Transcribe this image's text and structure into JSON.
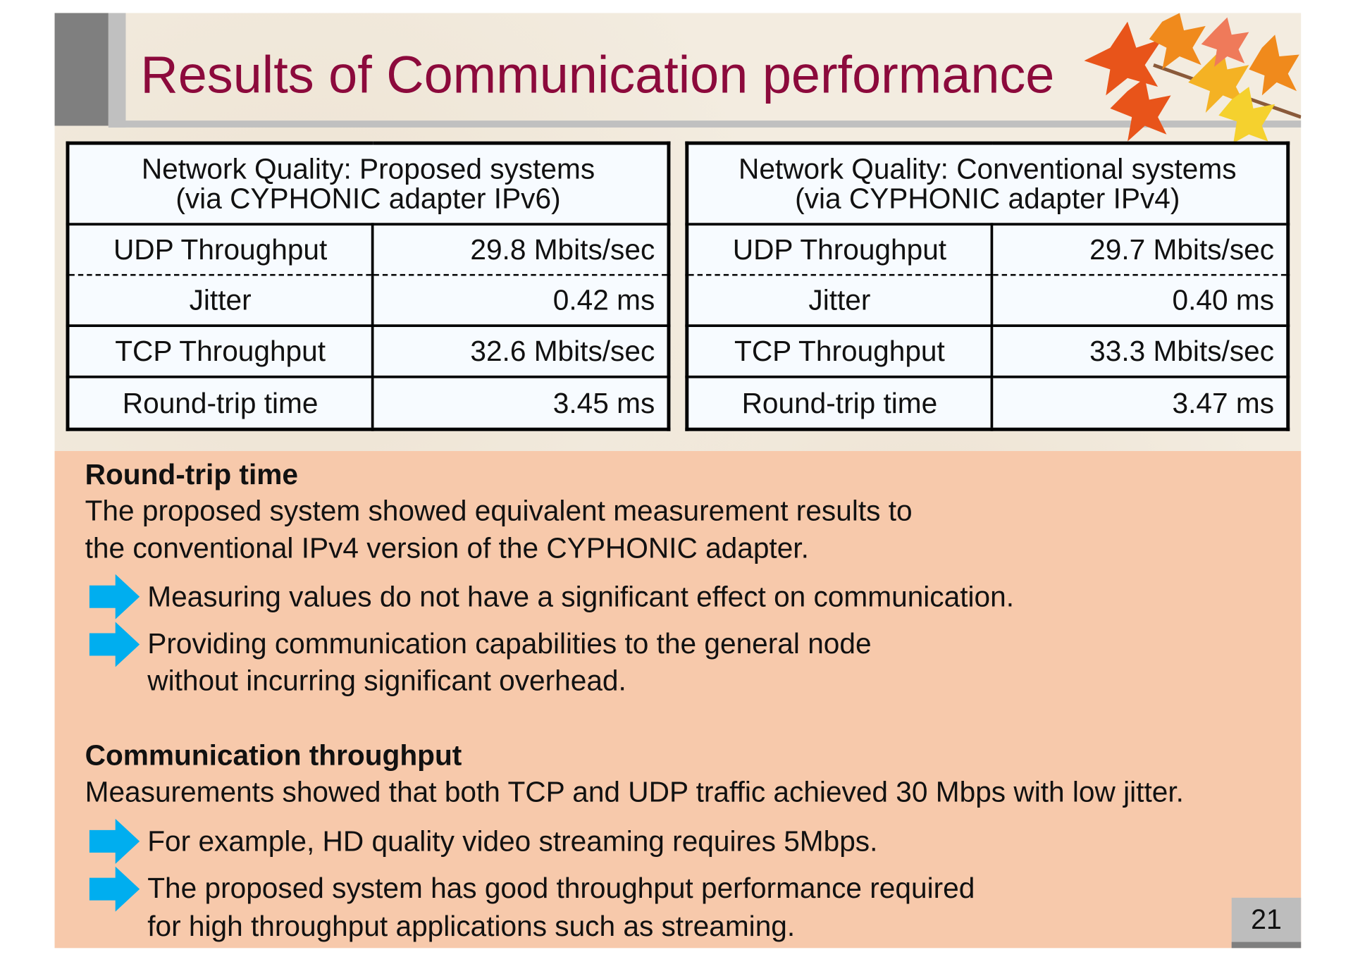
{
  "title": "Results of Communication performance",
  "tables": [
    {
      "header_line1": "Network Quality: Proposed systems",
      "header_line2": "(via CYPHONIC adapter IPv6)",
      "rows": [
        {
          "label": "UDP Throughput",
          "value": "29.8 Mbits/sec"
        },
        {
          "label": "Jitter",
          "value": "0.42 ms"
        },
        {
          "label": "TCP Throughput",
          "value": "32.6 Mbits/sec"
        },
        {
          "label": "Round-trip time",
          "value": "3.45 ms"
        }
      ]
    },
    {
      "header_line1": "Network Quality: Conventional systems",
      "header_line2": "(via CYPHONIC adapter IPv4)",
      "rows": [
        {
          "label": "UDP Throughput",
          "value": "29.7 Mbits/sec"
        },
        {
          "label": "Jitter",
          "value": "0.40 ms"
        },
        {
          "label": "TCP Throughput",
          "value": "33.3 Mbits/sec"
        },
        {
          "label": "Round-trip time",
          "value": "3.47 ms"
        }
      ]
    }
  ],
  "sections": [
    {
      "heading": "Round-trip time",
      "body_line1": "The proposed system showed equivalent measurement results to",
      "body_line2": "the conventional IPv4 version of the CYPHONIC adapter.",
      "bullets": [
        {
          "line1": "Measuring values do not have a significant effect on communication."
        },
        {
          "line1": "Providing communication capabilities to the general node",
          "line2": "without incurring significant overhead."
        }
      ]
    },
    {
      "heading": "Communication throughput",
      "body_line1": "Measurements showed that both TCP and UDP traffic achieved 30 Mbps with low jitter.",
      "bullets": [
        {
          "line1": "For example, HD quality video streaming requires 5Mbps."
        },
        {
          "line1": "The proposed system has good throughput performance required",
          "line2": "for high throughput applications such as streaming."
        }
      ]
    }
  ],
  "page_number": "21",
  "colors": {
    "title": "#8c0a3c",
    "note_bg": "#f7c9ab",
    "arrow": "#00aeef"
  },
  "icons": {
    "bullet": "right-arrow-icon",
    "decoration": "maple-leaves-icon"
  }
}
